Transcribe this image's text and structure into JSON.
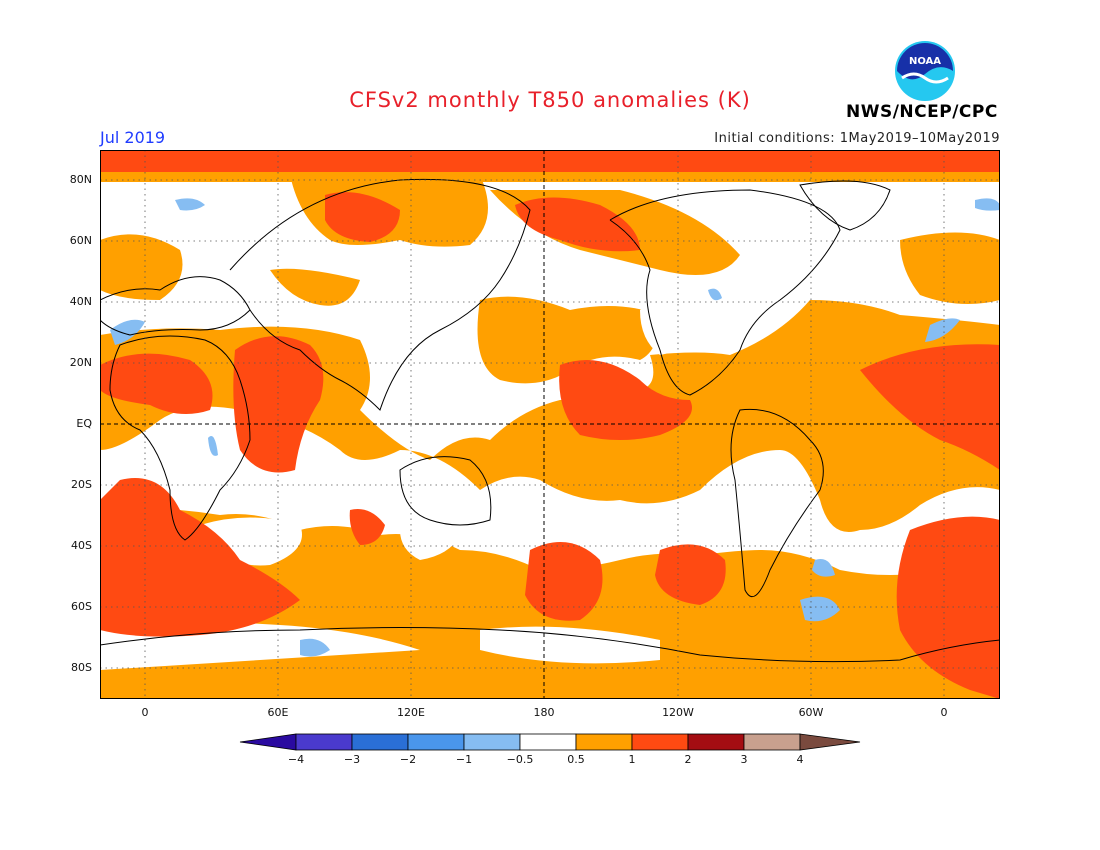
{
  "header": {
    "title": "CFSv2 monthly T850 anomalies (K)",
    "month": "Jul 2019",
    "initial_conditions": "Initial conditions: 1May2019–10May2019",
    "agency": "NWS/NCEP/CPC",
    "logo_icon": "noaa-logo-icon",
    "logo_text": "NOAA"
  },
  "map": {
    "lat_labels": [
      "80N",
      "60N",
      "40N",
      "20N",
      "EQ",
      "20S",
      "40S",
      "60S",
      "80S"
    ],
    "lon_labels": [
      "0",
      "60E",
      "120E",
      "180",
      "120W",
      "60W",
      "0"
    ]
  },
  "colorbar": {
    "labels": [
      "−4",
      "−3",
      "−2",
      "−1",
      "−0.5",
      "0.5",
      "1",
      "2",
      "3",
      "4"
    ],
    "colors": {
      "lt_neg4": "#2a0aa0",
      "neg4_neg3": "#4a3acd",
      "neg3_neg2": "#2a6fd6",
      "neg2_neg1": "#4a96ec",
      "neg1_neg05": "#86bdf2",
      "neg05_05": "#ffffff",
      "p05_1": "#ffa000",
      "p1_2": "#ff4a12",
      "p2_3": "#a40d12",
      "p3_4": "#c8a08e",
      "gt4": "#7a4a3e"
    }
  }
}
